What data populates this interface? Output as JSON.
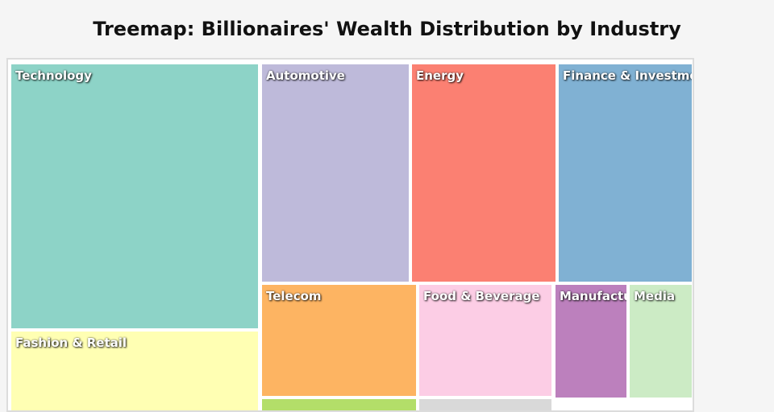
{
  "page_title": "Treemap: Billionaires' Wealth Distribution by Industry",
  "chart_data": {
    "type": "treemap",
    "title": "Treemap: Billionaires' Wealth Distribution by Industry",
    "categories": [
      "Technology",
      "Fashion & Retail",
      "Automotive",
      "Energy",
      "Finance & Investments",
      "Telecom",
      "Food & Beverage",
      "Manufacturing",
      "Media"
    ],
    "colors": {
      "Technology": "#8dd3c7",
      "Fashion & Retail": "#ffffb3",
      "Automotive": "#bebada",
      "Energy": "#fb8072",
      "Finance & Investments": "#80b1d3",
      "Telecom": "#fdb462",
      "Food & Beverage": "#fccde5",
      "Manufacturing": "#bc80bd",
      "Media": "#ccebc5",
      "unlabeled_green": "#b3de69",
      "unlabeled_gray": "#d9d9d9"
    },
    "visible_labels": {
      "Finance & Investments": "Finance & Investmen",
      "Manufacturing": "Manufactu"
    }
  }
}
